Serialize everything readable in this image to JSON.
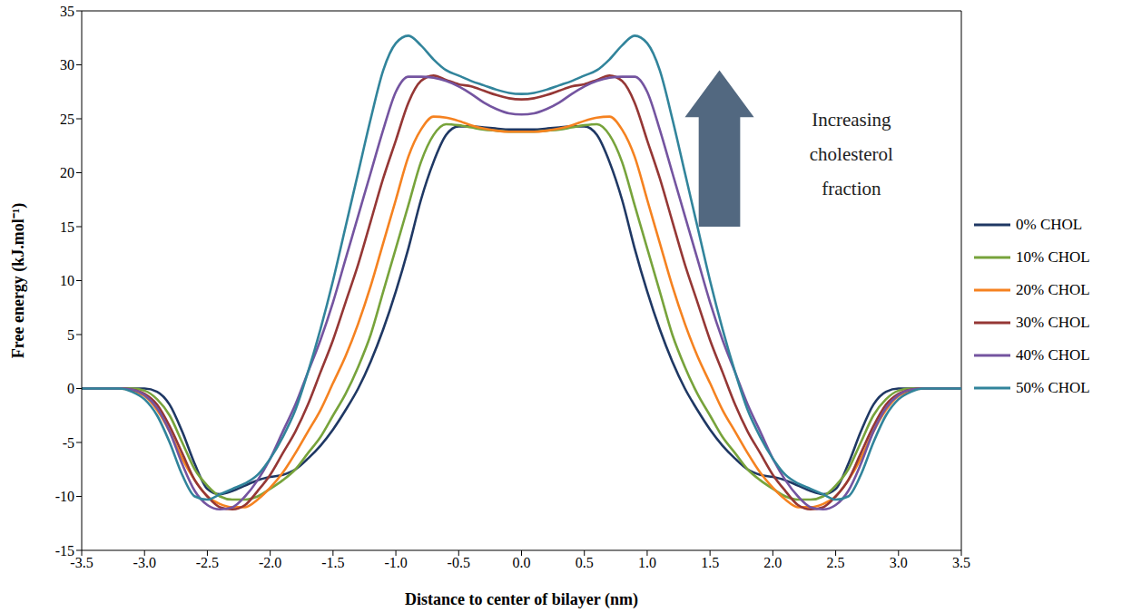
{
  "chart_data": {
    "type": "line",
    "x_label": "Distance to center of bilayer (nm)",
    "y_label": "Free energy (kJ.mol⁻¹)",
    "annotation": "Increasing cholesterol fraction",
    "x": [
      -3.5,
      -3.4,
      -3.3,
      -3.2,
      -3.1,
      -3.0,
      -2.9,
      -2.8,
      -2.7,
      -2.6,
      -2.5,
      -2.4,
      -2.3,
      -2.2,
      -2.1,
      -2.0,
      -1.9,
      -1.8,
      -1.7,
      -1.6,
      -1.5,
      -1.4,
      -1.3,
      -1.2,
      -1.1,
      -1.0,
      -0.9,
      -0.8,
      -0.7,
      -0.6,
      -0.5,
      -0.4,
      -0.3,
      -0.2,
      -0.1,
      0,
      0.1,
      0.2,
      0.3,
      0.4,
      0.5,
      0.6,
      0.7,
      0.8,
      0.9,
      1.0,
      1.1,
      1.2,
      1.3,
      1.4,
      1.5,
      1.6,
      1.7,
      1.8,
      1.9,
      2.0,
      2.1,
      2.2,
      2.3,
      2.4,
      2.5,
      2.6,
      2.7,
      2.8,
      2.9,
      3.0,
      3.1,
      3.2,
      3.3,
      3.4,
      3.5
    ],
    "series": [
      {
        "name": "0% CHOL",
        "color": "#1F3864",
        "values": [
          0,
          0,
          0,
          0,
          0,
          0,
          -0.3,
          -1.5,
          -4,
          -7,
          -9.3,
          -9.8,
          -9.5,
          -9,
          -8.5,
          -8.2,
          -8,
          -7.5,
          -6.5,
          -5.3,
          -3.8,
          -2,
          0,
          2.5,
          5.5,
          9,
          13,
          17.5,
          21,
          23.5,
          24.3,
          24.3,
          24.2,
          24.1,
          24,
          24,
          24,
          24.1,
          24.2,
          24.3,
          24.3,
          23.5,
          21,
          17.5,
          13,
          9,
          5.5,
          2.5,
          0,
          -2,
          -3.8,
          -5.3,
          -6.5,
          -7.5,
          -8,
          -8.2,
          -8.5,
          -9,
          -9.5,
          -9.8,
          -9.3,
          -7,
          -4,
          -1.5,
          -0.3,
          0,
          0,
          0,
          0,
          0,
          0
        ]
      },
      {
        "name": "10% CHOL",
        "color": "#77A33B",
        "values": [
          0,
          0,
          0,
          0,
          0,
          -0.2,
          -1,
          -2.5,
          -5,
          -7.5,
          -9,
          -10,
          -10.3,
          -10.3,
          -10,
          -9.3,
          -8.5,
          -7.5,
          -6,
          -4.5,
          -2.5,
          -0.5,
          2,
          5,
          9,
          13,
          17,
          21,
          23.5,
          24.5,
          24.4,
          24.2,
          24,
          23.9,
          23.8,
          23.8,
          23.8,
          23.9,
          24,
          24.2,
          24.4,
          24.5,
          23.5,
          21,
          17,
          13,
          9,
          5,
          2,
          -0.5,
          -2.5,
          -4.5,
          -6,
          -7.5,
          -8.5,
          -9.3,
          -10,
          -10.3,
          -10.3,
          -10,
          -9,
          -7.5,
          -5,
          -2.5,
          -1,
          -0.2,
          0,
          0,
          0,
          0,
          0
        ]
      },
      {
        "name": "20% CHOL",
        "color": "#F58220",
        "values": [
          0,
          0,
          0,
          0,
          -0.2,
          -0.7,
          -2,
          -4,
          -6.5,
          -8.5,
          -10,
          -10.7,
          -11,
          -11,
          -10.3,
          -9.2,
          -7.8,
          -6,
          -4,
          -2,
          0.5,
          3,
          6,
          9.5,
          13.5,
          17.5,
          21.5,
          24,
          25.2,
          25.1,
          24.8,
          24.4,
          24.1,
          23.9,
          23.8,
          23.8,
          23.8,
          23.9,
          24.1,
          24.4,
          24.8,
          25.1,
          25.2,
          24,
          21.5,
          17.5,
          13.5,
          9.5,
          6,
          3,
          0.5,
          -2,
          -4,
          -6,
          -7.8,
          -9.2,
          -10.3,
          -11,
          -11,
          -10.7,
          -10,
          -8.5,
          -6.5,
          -4,
          -2,
          -0.7,
          -0.2,
          0,
          0,
          0,
          0
        ]
      },
      {
        "name": "30% CHOL",
        "color": "#953735",
        "values": [
          0,
          0,
          0,
          0,
          -0.1,
          -0.5,
          -1.5,
          -3.5,
          -6,
          -8.5,
          -10,
          -11,
          -11.2,
          -10.8,
          -9.5,
          -8,
          -6,
          -4,
          -1.5,
          1.5,
          4.5,
          8,
          11.5,
          15.5,
          19.5,
          23,
          26.5,
          28.5,
          29,
          28.6,
          28.2,
          28,
          27.6,
          27.2,
          26.9,
          26.8,
          26.9,
          27.2,
          27.6,
          28,
          28.2,
          28.6,
          29,
          28.5,
          26.5,
          23,
          19.5,
          15.5,
          11.5,
          8,
          4.5,
          1.5,
          -1.5,
          -4,
          -6,
          -8,
          -9.5,
          -10.8,
          -11.2,
          -11,
          -10,
          -8.5,
          -6,
          -3.5,
          -1.5,
          -0.5,
          -0.1,
          0,
          0,
          0,
          0
        ]
      },
      {
        "name": "40% CHOL",
        "color": "#7454A0",
        "values": [
          0,
          0,
          0,
          0,
          -0.1,
          -0.6,
          -1.8,
          -4,
          -7,
          -9.5,
          -10.8,
          -11.2,
          -11,
          -10,
          -8.5,
          -6.5,
          -4,
          -1.5,
          1.5,
          4.5,
          8,
          12,
          16,
          20,
          24,
          27.5,
          28.9,
          28.9,
          28.8,
          28.5,
          28,
          27.3,
          26.5,
          25.9,
          25.5,
          25.4,
          25.5,
          25.9,
          26.5,
          27.3,
          28,
          28.5,
          28.8,
          28.9,
          28.9,
          27.5,
          24,
          20,
          16,
          12,
          8,
          4.5,
          1.5,
          -1.5,
          -4,
          -6.5,
          -8.5,
          -10,
          -11,
          -11.2,
          -10.8,
          -9.5,
          -7,
          -4,
          -1.8,
          -0.6,
          -0.1,
          0,
          0,
          0,
          0
        ]
      },
      {
        "name": "50% CHOL",
        "color": "#31849B",
        "values": [
          0,
          0,
          0,
          0,
          -0.3,
          -1,
          -2.5,
          -5,
          -8,
          -10,
          -10.3,
          -9.8,
          -9.3,
          -8.8,
          -8,
          -6.5,
          -4.5,
          -2,
          1.5,
          5.5,
          10,
          15,
          20,
          25,
          29.5,
          32,
          32.7,
          31.8,
          30.5,
          29.5,
          29,
          28.5,
          28.1,
          27.7,
          27.4,
          27.3,
          27.4,
          27.7,
          28.1,
          28.5,
          29,
          29.5,
          30.5,
          31.8,
          32.7,
          32,
          29.5,
          25,
          20,
          15,
          10,
          5.5,
          1.5,
          -2,
          -4.5,
          -6.5,
          -8,
          -8.8,
          -9.3,
          -9.8,
          -10.3,
          -10,
          -8,
          -5,
          -2.5,
          -1,
          -0.3,
          0,
          0,
          0,
          0
        ]
      }
    ],
    "xlim": [
      -3.5,
      3.5
    ],
    "xticks": [
      -3.5,
      {
        "value": -3,
        "label": "-3.0"
      },
      -2.5,
      {
        "value": -2,
        "label": "-2.0"
      },
      -1.5,
      {
        "value": -1,
        "label": "-1.0"
      },
      -0.5,
      {
        "value": 0,
        "label": "0.0"
      },
      0.5,
      {
        "value": 1,
        "label": "1.0"
      },
      1.5,
      {
        "value": 2,
        "label": "2.0"
      },
      2.5,
      {
        "value": 3,
        "label": "3.0"
      },
      3.5
    ],
    "ylim": [
      -15,
      35
    ],
    "yticks": [
      -15,
      -10,
      -5,
      0,
      5,
      10,
      15,
      20,
      25,
      30,
      35
    ],
    "grid": false,
    "legend": "right",
    "line_style": "solid"
  }
}
